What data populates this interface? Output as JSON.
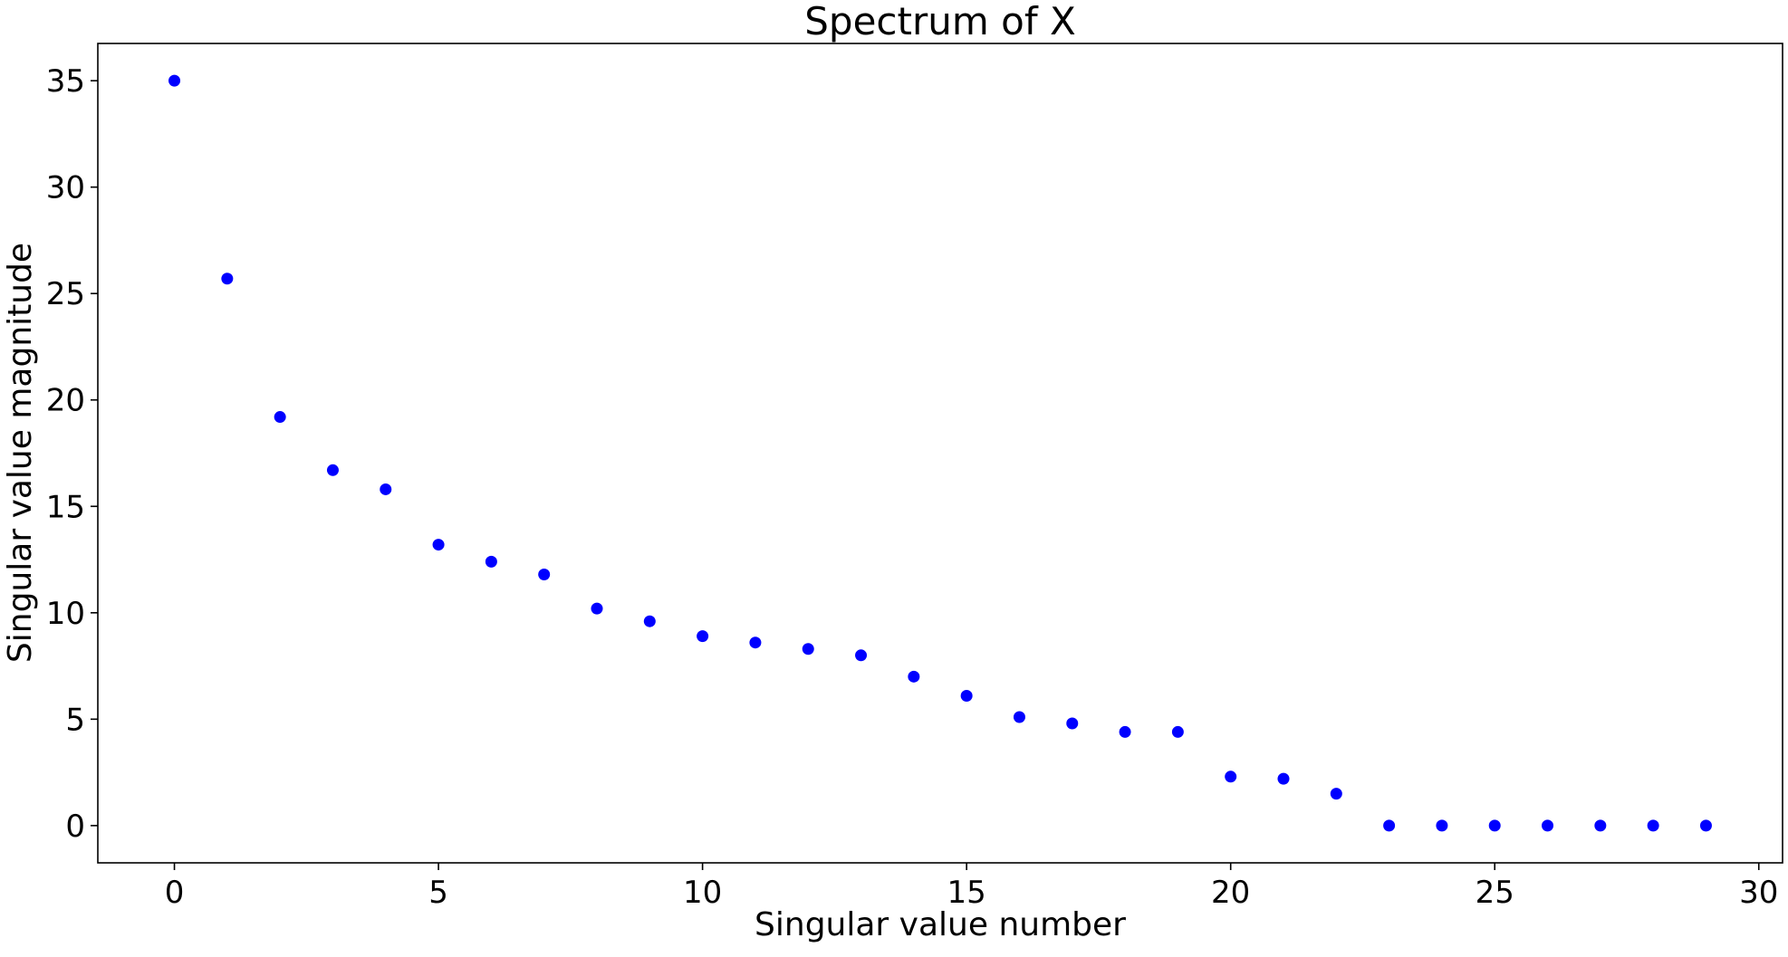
{
  "chart_data": {
    "type": "scatter",
    "title": "Spectrum of X",
    "xlabel": "Singular value number",
    "ylabel": "Singular value magnitude",
    "xlim": [
      -1.45,
      30.45
    ],
    "ylim": [
      -1.75,
      36.75
    ],
    "x_ticks": [
      0,
      5,
      10,
      15,
      20,
      25,
      30
    ],
    "y_ticks": [
      0,
      5,
      10,
      15,
      20,
      25,
      30,
      35
    ],
    "grid": false,
    "series": [
      {
        "color": "#0000ff",
        "x": [
          0,
          1,
          2,
          3,
          4,
          5,
          6,
          7,
          8,
          9,
          10,
          11,
          12,
          13,
          14,
          15,
          16,
          17,
          18,
          19,
          20,
          21,
          22,
          23,
          24,
          25,
          26,
          27,
          28,
          29
        ],
        "y": [
          35.0,
          25.7,
          19.2,
          16.7,
          15.8,
          13.2,
          12.4,
          11.8,
          10.2,
          9.6,
          8.9,
          8.6,
          8.3,
          8.0,
          7.0,
          6.1,
          5.1,
          4.8,
          4.4,
          4.4,
          2.3,
          2.2,
          1.5,
          0,
          0,
          0,
          0,
          0,
          0,
          0
        ]
      }
    ]
  }
}
